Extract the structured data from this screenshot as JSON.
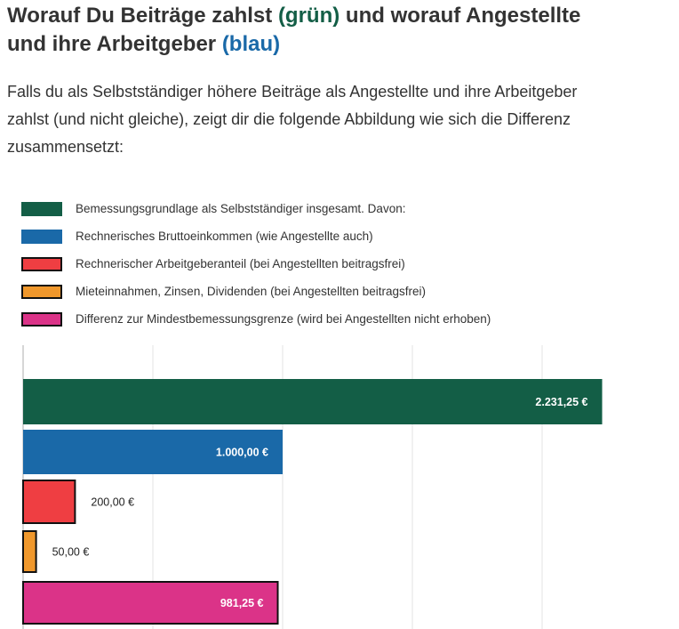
{
  "heading": {
    "line1_prefix": "Worauf Du Beiträge zahlst ",
    "line1_green": "(grün)",
    "line1_suffix": " und worauf Angestellte",
    "line2_prefix": "und ihre Arbeitgeber ",
    "line2_blue": "(blau)"
  },
  "intro": {
    "line1": "Falls du als Selbstständiger höhere Beiträge als Angestellte und ihre Arbeitgeber",
    "line2": "zahlst (und nicht gleiche), zeigt dir die folgende Abbildung wie sich die Differenz",
    "line3": "zusammensetzt:"
  },
  "colors": {
    "heading_green": "#135e46",
    "heading_blue": "#1a69a8",
    "grid": "#e3e3e3",
    "axis": "#c8c8c8"
  },
  "chart_data": {
    "type": "bar",
    "orientation": "horizontal",
    "grid": true,
    "xlim": [
      0,
      2250
    ],
    "x_gridlines": [
      0,
      500,
      1000,
      1500,
      2000
    ],
    "legend_position": "top",
    "series": [
      {
        "label": "Bemessungsgrundlage als Selbstständiger insgesamt. Davon:",
        "value": 2231.25,
        "value_label": "2.231,25 €",
        "color": "#135e46",
        "border": false,
        "label_inside": true
      },
      {
        "label": "Rechnerisches Bruttoeinkommen (wie Angestellte auch)",
        "value": 1000.0,
        "value_label": "1.000,00 €",
        "color": "#1a69a8",
        "border": false,
        "label_inside": true
      },
      {
        "label": "Rechnerischer Arbeitgeberanteil (bei Angestellten beitragsfrei)",
        "value": 200.0,
        "value_label": "200,00 €",
        "color": "#ef3e42",
        "border": true,
        "label_inside": false
      },
      {
        "label": "Mieteinnahmen, Zinsen, Dividenden (bei Angestellten beitragsfrei)",
        "value": 50.0,
        "value_label": "50,00 €",
        "color": "#f0982c",
        "border": true,
        "label_inside": false
      },
      {
        "label": "Differenz zur Mindestbemessungsgrenze (wird bei Angestellten nicht erhoben)",
        "value": 981.25,
        "value_label": "981,25 €",
        "color": "#db3388",
        "border": true,
        "label_inside": true
      }
    ]
  }
}
